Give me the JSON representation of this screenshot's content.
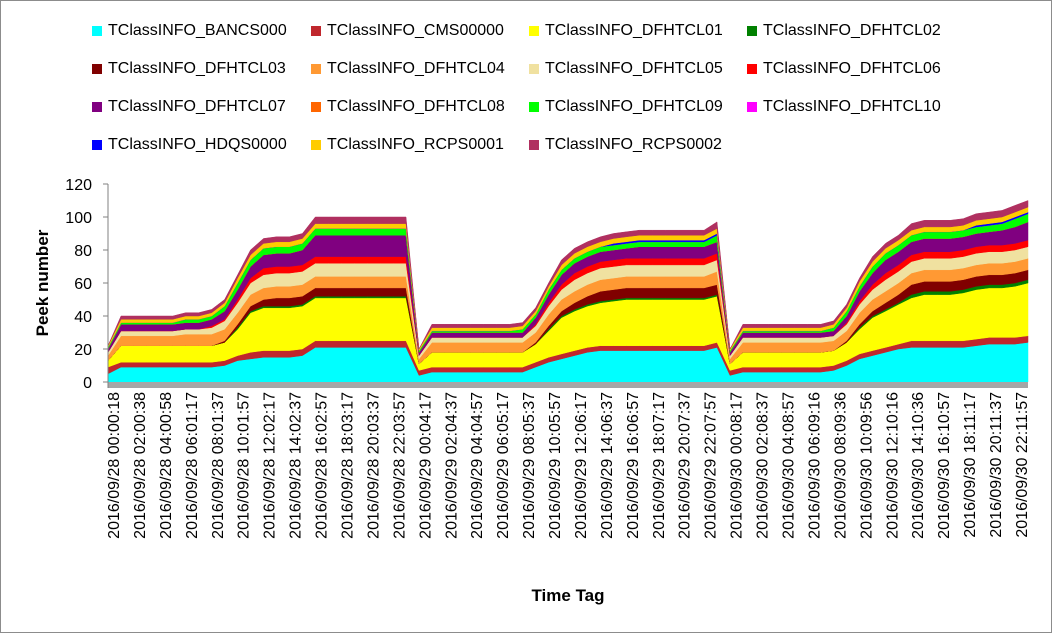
{
  "chart_data": {
    "type": "area",
    "title": "",
    "xlabel": "Time Tag",
    "ylabel": "Peek number",
    "ylim": [
      0,
      120
    ],
    "yticks": [
      0,
      20,
      40,
      60,
      80,
      100,
      120
    ],
    "grid": false,
    "legend_position": "top",
    "stacked": true,
    "x_tick_labels": [
      "2016/09/28 00:00:18",
      "2016/09/28 02:00:38",
      "2016/09/28 04:00:58",
      "2016/09/28 06:01:17",
      "2016/09/28 08:01:37",
      "2016/09/28 10:01:57",
      "2016/09/28 12:02:17",
      "2016/09/28 14:02:37",
      "2016/09/28 16:02:57",
      "2016/09/28 18:03:17",
      "2016/09/28 20:03:37",
      "2016/09/28 22:03:57",
      "2016/09/29 00:04:17",
      "2016/09/29 02:04:37",
      "2016/09/29 04:04:57",
      "2016/09/29 06:05:17",
      "2016/09/29 08:05:37",
      "2016/09/29 10:05:57",
      "2016/09/29 12:06:17",
      "2016/09/29 14:06:37",
      "2016/09/29 16:06:57",
      "2016/09/29 18:07:17",
      "2016/09/29 20:07:37",
      "2016/09/29 22:07:57",
      "2016/09/30 00:08:17",
      "2016/09/30 02:08:37",
      "2016/09/30 04:08:57",
      "2016/09/30 06:09:16",
      "2016/09/30 08:09:36",
      "2016/09/30 10:09:56",
      "2016/09/30 12:10:16",
      "2016/09/30 14:10:36",
      "2016/09/30 16:10:57",
      "2016/09/30 18:11:17",
      "2016/09/30 20:11:37",
      "2016/09/30 22:11:57"
    ],
    "x_hours": [
      0,
      1,
      2,
      3,
      4,
      5,
      6,
      7,
      8,
      9,
      10,
      11,
      12,
      13,
      14,
      15,
      16,
      17,
      18,
      19,
      20,
      21,
      22,
      23,
      24,
      25,
      26,
      27,
      28,
      29,
      30,
      31,
      32,
      33,
      34,
      35,
      36,
      37,
      38,
      39,
      40,
      41,
      42,
      43,
      44,
      45,
      46,
      47,
      48,
      49,
      50,
      51,
      52,
      53,
      54,
      55,
      56,
      57,
      58,
      59,
      60,
      61,
      62,
      63,
      64,
      65,
      66,
      67,
      68,
      69,
      70,
      71
    ],
    "series": [
      {
        "name": "TClassINFO_BANCS000",
        "color": "#00FFFF",
        "values": [
          5,
          9,
          9,
          9,
          9,
          9,
          9,
          9,
          9,
          10,
          13,
          14,
          15,
          15,
          15,
          16,
          21,
          21,
          21,
          21,
          21,
          21,
          21,
          21,
          4,
          6,
          6,
          6,
          6,
          6,
          6,
          6,
          6,
          9,
          12,
          14,
          16,
          18,
          19,
          19,
          19,
          19,
          19,
          19,
          19,
          19,
          19,
          21,
          4,
          6,
          6,
          6,
          6,
          6,
          6,
          6,
          7,
          10,
          14,
          16,
          18,
          20,
          21,
          21,
          21,
          21,
          21,
          22,
          23,
          23,
          23,
          24
        ]
      },
      {
        "name": "TClassINFO_CMS00000",
        "color": "#C0272D",
        "values": [
          4,
          3,
          3,
          3,
          3,
          3,
          3,
          3,
          3,
          3,
          3,
          4,
          4,
          4,
          4,
          4,
          4,
          4,
          4,
          4,
          4,
          4,
          4,
          4,
          3,
          3,
          3,
          3,
          3,
          3,
          3,
          3,
          3,
          3,
          3,
          3,
          3,
          3,
          3,
          3,
          3,
          3,
          3,
          3,
          3,
          3,
          3,
          3,
          3,
          3,
          3,
          3,
          3,
          3,
          3,
          3,
          3,
          3,
          3,
          3,
          3,
          3,
          4,
          4,
          4,
          4,
          4,
          4,
          4,
          4,
          4,
          4
        ]
      },
      {
        "name": "TClassINFO_DFHTCL01",
        "color": "#FFFF00",
        "values": [
          4,
          10,
          10,
          10,
          10,
          10,
          10,
          10,
          10,
          11,
          16,
          24,
          26,
          26,
          26,
          26,
          26,
          26,
          26,
          26,
          26,
          26,
          26,
          26,
          4,
          9,
          9,
          9,
          9,
          9,
          9,
          9,
          9,
          11,
          16,
          22,
          24,
          25,
          26,
          27,
          28,
          28,
          28,
          28,
          28,
          28,
          28,
          28,
          4,
          9,
          9,
          9,
          9,
          9,
          9,
          9,
          9,
          11,
          15,
          20,
          22,
          24,
          26,
          28,
          28,
          28,
          29,
          30,
          30,
          30,
          31,
          32
        ]
      },
      {
        "name": "TClassINFO_DFHTCL02",
        "color": "#008000",
        "values": [
          0,
          0,
          0,
          0,
          0,
          0,
          0,
          0,
          0,
          0,
          1,
          1,
          1,
          1,
          1,
          1,
          1,
          1,
          1,
          1,
          1,
          1,
          1,
          1,
          0,
          0,
          0,
          0,
          0,
          0,
          0,
          0,
          0,
          0,
          1,
          1,
          1,
          1,
          1,
          1,
          1,
          1,
          1,
          1,
          1,
          1,
          1,
          1,
          0,
          0,
          0,
          0,
          0,
          0,
          0,
          0,
          0,
          0,
          1,
          1,
          1,
          1,
          2,
          2,
          2,
          2,
          2,
          2,
          2,
          2,
          2,
          2
        ]
      },
      {
        "name": "TClassINFO_DFHTCL03",
        "color": "#800000",
        "values": [
          0,
          0,
          0,
          0,
          0,
          0,
          0,
          0,
          0,
          1,
          2,
          3,
          4,
          5,
          5,
          5,
          5,
          5,
          5,
          5,
          5,
          5,
          5,
          5,
          0,
          0,
          0,
          0,
          0,
          0,
          0,
          0,
          0,
          1,
          2,
          3,
          4,
          5,
          6,
          6,
          6,
          6,
          6,
          6,
          6,
          6,
          6,
          6,
          0,
          0,
          0,
          0,
          0,
          0,
          0,
          0,
          0,
          1,
          2,
          3,
          4,
          5,
          6,
          6,
          6,
          6,
          6,
          6,
          6,
          6,
          6,
          6
        ]
      },
      {
        "name": "TClassINFO_DFHTCL04",
        "color": "#FF9933",
        "values": [
          3,
          6,
          6,
          6,
          6,
          6,
          7,
          7,
          7,
          7,
          7,
          7,
          7,
          7,
          7,
          7,
          7,
          7,
          7,
          7,
          7,
          7,
          7,
          7,
          3,
          6,
          6,
          6,
          6,
          6,
          6,
          6,
          6,
          6,
          7,
          7,
          7,
          7,
          7,
          7,
          7,
          7,
          7,
          7,
          7,
          7,
          7,
          8,
          3,
          6,
          6,
          6,
          6,
          6,
          6,
          6,
          6,
          6,
          7,
          7,
          7,
          7,
          7,
          7,
          7,
          7,
          7,
          7,
          7,
          7,
          7,
          7
        ]
      },
      {
        "name": "TClassINFO_DFHTCL05",
        "color": "#F0E1A0",
        "values": [
          2,
          3,
          3,
          3,
          3,
          3,
          3,
          3,
          4,
          5,
          6,
          7,
          8,
          8,
          8,
          8,
          8,
          8,
          8,
          8,
          8,
          8,
          8,
          8,
          2,
          3,
          3,
          3,
          3,
          3,
          3,
          3,
          3,
          4,
          5,
          6,
          7,
          7,
          7,
          7,
          7,
          7,
          7,
          7,
          7,
          7,
          7,
          7,
          2,
          3,
          3,
          3,
          3,
          3,
          3,
          3,
          3,
          4,
          5,
          6,
          7,
          7,
          7,
          7,
          7,
          7,
          7,
          7,
          7,
          7,
          7,
          7
        ]
      },
      {
        "name": "TClassINFO_DFHTCL06",
        "color": "#FF0000",
        "values": [
          0,
          0,
          0,
          0,
          0,
          0,
          0,
          0,
          1,
          1,
          2,
          3,
          4,
          4,
          4,
          4,
          4,
          4,
          4,
          4,
          4,
          4,
          4,
          4,
          0,
          0,
          0,
          0,
          0,
          0,
          0,
          0,
          0,
          1,
          2,
          3,
          4,
          4,
          4,
          4,
          4,
          4,
          4,
          4,
          4,
          4,
          4,
          4,
          0,
          0,
          0,
          0,
          0,
          0,
          0,
          0,
          0,
          1,
          2,
          3,
          4,
          4,
          4,
          4,
          4,
          4,
          4,
          4,
          4,
          4,
          4,
          4
        ]
      },
      {
        "name": "TClassINFO_DFHTCL07",
        "color": "#800080",
        "values": [
          2,
          4,
          4,
          4,
          4,
          4,
          4,
          4,
          4,
          5,
          6,
          7,
          8,
          8,
          8,
          9,
          13,
          13,
          13,
          13,
          13,
          13,
          13,
          13,
          2,
          3,
          3,
          3,
          3,
          3,
          3,
          3,
          3,
          4,
          5,
          6,
          6,
          6,
          6,
          6,
          6,
          7,
          7,
          7,
          7,
          7,
          7,
          7,
          2,
          3,
          3,
          3,
          3,
          3,
          3,
          3,
          3,
          4,
          6,
          7,
          8,
          8,
          8,
          8,
          8,
          8,
          8,
          8,
          8,
          9,
          10,
          11
        ]
      },
      {
        "name": "TClassINFO_DFHTCL08",
        "color": "#FF6600",
        "values": [
          0,
          0,
          0,
          0,
          0,
          0,
          0,
          0,
          0,
          0,
          0,
          0,
          0,
          0,
          0,
          0,
          0,
          0,
          0,
          0,
          0,
          0,
          0,
          0,
          0,
          0,
          0,
          0,
          0,
          0,
          0,
          0,
          0,
          0,
          0,
          0,
          0,
          0,
          0,
          0,
          0,
          0,
          0,
          0,
          0,
          0,
          0,
          0,
          0,
          0,
          0,
          0,
          0,
          0,
          0,
          0,
          0,
          0,
          0,
          0,
          0,
          0,
          0,
          0,
          0,
          0,
          0,
          0,
          0,
          0,
          0,
          0
        ]
      },
      {
        "name": "TClassINFO_DFHTCL09",
        "color": "#00FF00",
        "values": [
          1,
          1,
          1,
          1,
          1,
          1,
          2,
          2,
          2,
          3,
          4,
          4,
          4,
          4,
          4,
          4,
          4,
          4,
          4,
          4,
          4,
          4,
          4,
          4,
          1,
          1,
          1,
          1,
          1,
          1,
          1,
          1,
          2,
          2,
          3,
          3,
          3,
          3,
          3,
          3,
          3,
          3,
          3,
          3,
          3,
          3,
          3,
          4,
          1,
          1,
          1,
          1,
          1,
          1,
          1,
          1,
          2,
          3,
          3,
          4,
          4,
          4,
          4,
          4,
          4,
          4,
          4,
          4,
          4,
          4,
          5,
          5
        ]
      },
      {
        "name": "TClassINFO_DFHTCL10",
        "color": "#FF00FF",
        "values": [
          0,
          0,
          0,
          0,
          0,
          0,
          0,
          0,
          0,
          0,
          0,
          0,
          0,
          0,
          0,
          0,
          0,
          0,
          0,
          0,
          0,
          0,
          0,
          0,
          0,
          0,
          0,
          0,
          0,
          0,
          0,
          0,
          0,
          0,
          0,
          0,
          0,
          0,
          0,
          0,
          0,
          0,
          0,
          0,
          0,
          0,
          0,
          0,
          0,
          0,
          0,
          0,
          0,
          0,
          0,
          0,
          0,
          0,
          0,
          0,
          0,
          0,
          0,
          0,
          0,
          0,
          0,
          0,
          0,
          0,
          0,
          0
        ]
      },
      {
        "name": "TClassINFO_HDQS0000",
        "color": "#0000FF",
        "values": [
          0,
          0,
          0,
          0,
          0,
          0,
          0,
          0,
          0,
          0,
          0,
          0,
          0,
          0,
          0,
          0,
          0,
          0,
          0,
          0,
          0,
          0,
          0,
          0,
          0,
          0,
          0,
          0,
          0,
          0,
          0,
          0,
          0,
          0,
          0,
          0,
          0,
          0,
          0,
          1,
          1,
          1,
          1,
          1,
          1,
          1,
          1,
          1,
          0,
          0,
          0,
          0,
          0,
          0,
          0,
          0,
          0,
          0,
          0,
          0,
          0,
          0,
          0,
          0,
          0,
          0,
          0,
          1,
          1,
          1,
          1,
          1
        ]
      },
      {
        "name": "TClassINFO_RCPS0001",
        "color": "#FFCC00",
        "values": [
          1,
          2,
          2,
          2,
          2,
          2,
          2,
          2,
          2,
          2,
          3,
          3,
          3,
          3,
          3,
          3,
          3,
          3,
          3,
          3,
          3,
          3,
          3,
          3,
          1,
          2,
          2,
          2,
          2,
          2,
          2,
          2,
          2,
          2,
          2,
          3,
          3,
          3,
          3,
          3,
          3,
          3,
          3,
          3,
          3,
          3,
          3,
          3,
          1,
          2,
          2,
          2,
          2,
          2,
          2,
          2,
          2,
          2,
          3,
          3,
          3,
          3,
          3,
          3,
          3,
          3,
          3,
          3,
          3,
          3,
          3,
          3
        ]
      },
      {
        "name": "TClassINFO_RCPS0002",
        "color": "#B03060",
        "values": [
          0,
          2,
          2,
          2,
          2,
          2,
          2,
          2,
          2,
          2,
          2,
          3,
          3,
          3,
          3,
          3,
          4,
          4,
          4,
          4,
          4,
          4,
          4,
          4,
          0,
          2,
          2,
          2,
          2,
          2,
          2,
          2,
          2,
          2,
          2,
          3,
          3,
          3,
          3,
          3,
          3,
          3,
          3,
          3,
          3,
          3,
          3,
          4,
          0,
          2,
          2,
          2,
          2,
          2,
          2,
          2,
          2,
          2,
          2,
          3,
          3,
          3,
          4,
          4,
          4,
          4,
          4,
          4,
          4,
          4,
          4,
          4
        ]
      }
    ]
  }
}
